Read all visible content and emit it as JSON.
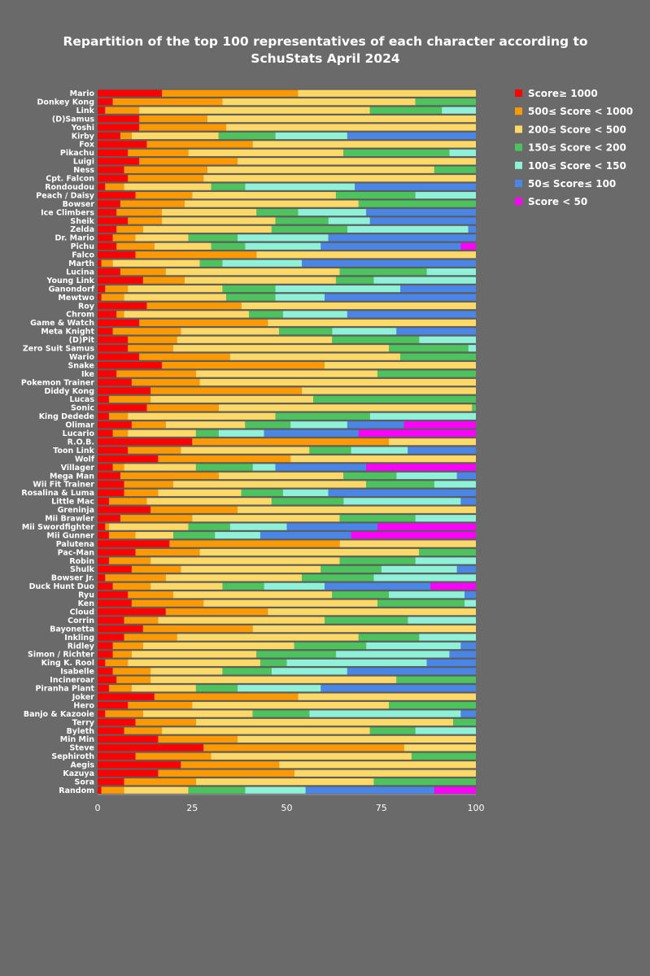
{
  "chart_data": {
    "type": "bar",
    "orientation": "horizontal",
    "stacked": true,
    "title_lines": [
      "Repartition of the top 100 representatives of each character according to",
      "SchuStats April 2024"
    ],
    "xlim": [
      0,
      100
    ],
    "xticks": [
      "0",
      "25",
      "50",
      "75",
      "100"
    ],
    "xtick_values": [
      0,
      25,
      50,
      75,
      100
    ],
    "xlabel": "",
    "ylabel": "",
    "grid": false,
    "legend_position": "right",
    "series": [
      {
        "name": "Score≥ 1000",
        "color": "#ff0000"
      },
      {
        "name": "500≤ Score < 1000",
        "color": "#ff9900"
      },
      {
        "name": "200≤ Score < 500",
        "color": "#ffd966"
      },
      {
        "name": "150≤ Score < 200",
        "color": "#4cc35c"
      },
      {
        "name": "100≤ Score < 150",
        "color": "#8ef2d8"
      },
      {
        "name": "50≤ Score≤ 100",
        "color": "#4a86e8"
      },
      {
        "name": " Score < 50",
        "color": "#ff00ff"
      }
    ],
    "categories": [
      "Mario",
      "Donkey Kong",
      "Link",
      "(D)Samus",
      "Yoshi",
      "Kirby",
      "Fox",
      "Pikachu",
      "Luigi",
      "Ness",
      "Cpt. Falcon",
      "Rondoudou",
      "Peach / Daisy",
      "Bowser",
      "Ice Climbers",
      "Sheik",
      "Zelda",
      "Dr. Mario",
      "Pichu",
      "Falco",
      "Marth",
      "Lucina",
      "Young Link",
      "Ganondorf",
      "Mewtwo",
      "Roy",
      "Chrom",
      "Game & Watch",
      "Meta Knight",
      "(D)Pit",
      "Zero Suit Samus",
      "Wario",
      "Snake",
      "Ike",
      "Pokemon Trainer",
      "Diddy Kong",
      "Lucas",
      "Sonic",
      "King Dedede",
      "Olimar",
      "Lucario",
      "R.O.B.",
      "Toon Link",
      "Wolf",
      "Villager",
      "Mega Man",
      "Wii Fit Trainer",
      "Rosalina & Luma",
      "Little Mac",
      "Greninja",
      "Mii Brawler",
      "Mii Swordfighter",
      "Mii Gunner",
      "Palutena",
      "Pac-Man",
      "Robin",
      "Shulk",
      "Bowser Jr.",
      "Duck Hunt Duo",
      "Ryu",
      "Ken",
      "Cloud",
      "Corrin",
      "Bayonetta",
      "Inkling",
      "Ridley",
      "Simon / Richter",
      "King K. Rool",
      "Isabelle",
      "Incineroar",
      "Piranha Plant",
      "Joker",
      "Hero",
      "Banjo & Kazooie",
      "Terry",
      "Byleth",
      "Min Min",
      "Steve",
      "Sephiroth",
      "Aegis",
      "Kazuya",
      "Sora",
      "Random"
    ],
    "values": [
      [
        17,
        36,
        47,
        0,
        0,
        0,
        0
      ],
      [
        4,
        29,
        51,
        16,
        0,
        0,
        0
      ],
      [
        2,
        9,
        61,
        19,
        9,
        0,
        0
      ],
      [
        11,
        18,
        71,
        0,
        0,
        0,
        0
      ],
      [
        11,
        23,
        66,
        0,
        0,
        0,
        0
      ],
      [
        6,
        3,
        23,
        15,
        19,
        34,
        0
      ],
      [
        13,
        28,
        59,
        0,
        0,
        0,
        0
      ],
      [
        8,
        16,
        41,
        28,
        7,
        0,
        0
      ],
      [
        11,
        26,
        63,
        0,
        0,
        0,
        0
      ],
      [
        7,
        22,
        60,
        11,
        0,
        0,
        0
      ],
      [
        8,
        20,
        72,
        0,
        0,
        0,
        0
      ],
      [
        2,
        5,
        23,
        9,
        29,
        32,
        0
      ],
      [
        10,
        15,
        38,
        21,
        16,
        0,
        0
      ],
      [
        6,
        17,
        46,
        31,
        0,
        0,
        0
      ],
      [
        5,
        12,
        25,
        11,
        18,
        29,
        0
      ],
      [
        8,
        9,
        30,
        14,
        11,
        28,
        0
      ],
      [
        5,
        7,
        34,
        20,
        32,
        2,
        0
      ],
      [
        4,
        6,
        14,
        13,
        24,
        39,
        0
      ],
      [
        5,
        10,
        15,
        9,
        20,
        37,
        4
      ],
      [
        10,
        32,
        58,
        0,
        0,
        0,
        0
      ],
      [
        1,
        3,
        23,
        6,
        21,
        46,
        0
      ],
      [
        6,
        12,
        46,
        23,
        13,
        0,
        0
      ],
      [
        12,
        11,
        40,
        10,
        27,
        0,
        0
      ],
      [
        2,
        6,
        25,
        14,
        33,
        20,
        0
      ],
      [
        1,
        6,
        27,
        13,
        13,
        40,
        0
      ],
      [
        13,
        25,
        62,
        0,
        0,
        0,
        0
      ],
      [
        5,
        2,
        33,
        9,
        17,
        34,
        0
      ],
      [
        11,
        34,
        55,
        0,
        0,
        0,
        0
      ],
      [
        4,
        18,
        26,
        14,
        17,
        21,
        0
      ],
      [
        8,
        13,
        41,
        23,
        15,
        0,
        0
      ],
      [
        8,
        12,
        57,
        21,
        2,
        0,
        0
      ],
      [
        11,
        24,
        45,
        20,
        0,
        0,
        0
      ],
      [
        17,
        43,
        40,
        0,
        0,
        0,
        0
      ],
      [
        5,
        21,
        48,
        26,
        0,
        0,
        0
      ],
      [
        9,
        18,
        73,
        0,
        0,
        0,
        0
      ],
      [
        14,
        40,
        46,
        0,
        0,
        0,
        0
      ],
      [
        3,
        11,
        43,
        43,
        0,
        0,
        0
      ],
      [
        13,
        19,
        67,
        1,
        0,
        0,
        0
      ],
      [
        3,
        5,
        39,
        25,
        28,
        0,
        0
      ],
      [
        9,
        9,
        21,
        12,
        15,
        15,
        19
      ],
      [
        4,
        4,
        18,
        6,
        12,
        25,
        31
      ],
      [
        25,
        52,
        23,
        0,
        0,
        0,
        0
      ],
      [
        8,
        14,
        34,
        11,
        15,
        18,
        0
      ],
      [
        16,
        35,
        49,
        0,
        0,
        0,
        0
      ],
      [
        4,
        3,
        19,
        15,
        6,
        24,
        29
      ],
      [
        6,
        26,
        33,
        14,
        16,
        5,
        0
      ],
      [
        7,
        13,
        51,
        18,
        11,
        0,
        0
      ],
      [
        7,
        9,
        22,
        11,
        12,
        39,
        0
      ],
      [
        3,
        10,
        33,
        19,
        31,
        4,
        0
      ],
      [
        14,
        23,
        63,
        0,
        0,
        0,
        0
      ],
      [
        6,
        19,
        39,
        20,
        16,
        0,
        0
      ],
      [
        2,
        1,
        21,
        11,
        15,
        24,
        26
      ],
      [
        3,
        7,
        10,
        11,
        12,
        24,
        33
      ],
      [
        19,
        45,
        36,
        0,
        0,
        0,
        0
      ],
      [
        10,
        17,
        58,
        15,
        0,
        0,
        0
      ],
      [
        3,
        11,
        50,
        20,
        16,
        0,
        0
      ],
      [
        9,
        13,
        37,
        16,
        20,
        5,
        0
      ],
      [
        2,
        16,
        36,
        19,
        27,
        0,
        0
      ],
      [
        4,
        10,
        19,
        11,
        16,
        28,
        12
      ],
      [
        8,
        12,
        42,
        15,
        20,
        3,
        0
      ],
      [
        9,
        19,
        46,
        23,
        3,
        0,
        0
      ],
      [
        18,
        27,
        55,
        0,
        0,
        0,
        0
      ],
      [
        7,
        9,
        44,
        22,
        18,
        0,
        0
      ],
      [
        12,
        29,
        59,
        0,
        0,
        0,
        0
      ],
      [
        7,
        14,
        48,
        16,
        15,
        0,
        0
      ],
      [
        4,
        8,
        40,
        19,
        25,
        4,
        0
      ],
      [
        4,
        5,
        33,
        21,
        30,
        7,
        0
      ],
      [
        2,
        6,
        35,
        7,
        37,
        13,
        0
      ],
      [
        4,
        10,
        19,
        13,
        20,
        34,
        0
      ],
      [
        5,
        9,
        65,
        21,
        0,
        0,
        0
      ],
      [
        3,
        6,
        17,
        11,
        22,
        41,
        0
      ],
      [
        15,
        38,
        47,
        0,
        0,
        0,
        0
      ],
      [
        8,
        17,
        52,
        23,
        0,
        0,
        0
      ],
      [
        2,
        10,
        29,
        15,
        40,
        4,
        0
      ],
      [
        10,
        16,
        68,
        6,
        0,
        0,
        0
      ],
      [
        7,
        10,
        55,
        12,
        16,
        0,
        0
      ],
      [
        16,
        21,
        63,
        0,
        0,
        0,
        0
      ],
      [
        28,
        53,
        19,
        0,
        0,
        0,
        0
      ],
      [
        10,
        20,
        53,
        17,
        0,
        0,
        0
      ],
      [
        22,
        26,
        52,
        0,
        0,
        0,
        0
      ],
      [
        16,
        36,
        48,
        0,
        0,
        0,
        0
      ],
      [
        7,
        19,
        47,
        27,
        0,
        0,
        0
      ],
      [
        1,
        6,
        17,
        15,
        16,
        34,
        11
      ]
    ]
  }
}
